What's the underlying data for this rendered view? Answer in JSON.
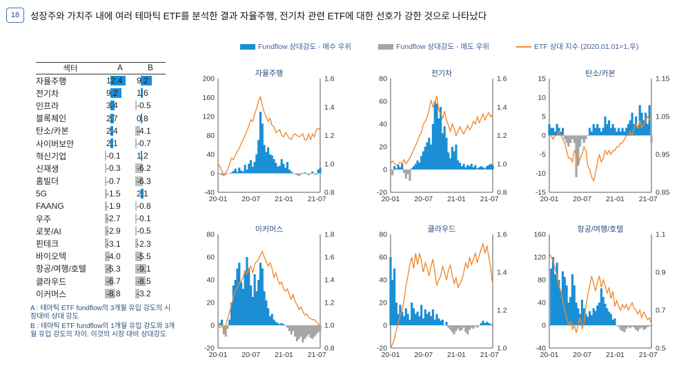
{
  "figure": {
    "number": "18",
    "title": "성장주와 가치주 내에 여러 테마틱 ETF를 분석한 결과 자율주행, 전기차 관련 ETF에 대한 선호가 강한 것으로 나타났다"
  },
  "legend": {
    "buy": "Fundflow 상대강도 - 매수 우위",
    "sell": "Fundflow 상대강도 - 매도 우위",
    "etf": "ETF 상대 지수 (2020.01.01=1,우)"
  },
  "colors": {
    "buy": "#1a8fd6",
    "sell": "#a6a6a6",
    "etf": "#f08a30",
    "text_blue": "#2a4d80"
  },
  "table": {
    "headers": [
      "섹터",
      "A",
      "B"
    ],
    "rows": [
      {
        "name": "자율주행",
        "a": 12.4,
        "b": 9.2
      },
      {
        "name": "전기차",
        "a": 9.2,
        "b": 1.6
      },
      {
        "name": "인프라",
        "a": 3.4,
        "b": -0.5
      },
      {
        "name": "블록체인",
        "a": 2.7,
        "b": 0.8
      },
      {
        "name": "탄소/카본",
        "a": 2.4,
        "b": -4.1
      },
      {
        "name": "사이버보안",
        "a": 2.1,
        "b": -0.7
      },
      {
        "name": "혁신기업",
        "a": -0.1,
        "b": 1.2
      },
      {
        "name": "신재생",
        "a": -0.3,
        "b": -6.2
      },
      {
        "name": "홈빌더",
        "a": -0.7,
        "b": -6.3
      },
      {
        "name": "5G",
        "a": -1.5,
        "b": 2.1
      },
      {
        "name": "FAANG",
        "a": -1.9,
        "b": -0.8
      },
      {
        "name": "우주",
        "a": -2.7,
        "b": -0.1
      },
      {
        "name": "로봇/AI",
        "a": -2.9,
        "b": -0.5
      },
      {
        "name": "핀테크",
        "a": -3.1,
        "b": -2.3
      },
      {
        "name": "바이오텍",
        "a": -4.0,
        "b": -5.5
      },
      {
        "name": "항공/여행/호텔",
        "a": -5.3,
        "b": -9.1
      },
      {
        "name": "클라우드",
        "a": -6.7,
        "b": -8.5
      },
      {
        "name": "이커머스",
        "a": -8.8,
        "b": -3.2
      }
    ]
  },
  "notes": {
    "a": "A : 테마틱 ETF fundflow의 3개월 유입 강도의 시장대비 상대 강도",
    "b": "B : 테마틱 ETF fundflow의 1개월 유입 강도와 3개월 유입 강도의 차이. 이것의 시장 대비 상대강도"
  },
  "chart_data": [
    {
      "type": "area",
      "title": "자율주행",
      "x_ticks": [
        "20-01",
        "20-07",
        "21-01",
        "21-07"
      ],
      "ylim": [
        -40,
        200
      ],
      "y_ticks": [
        -40,
        0,
        40,
        80,
        120,
        160,
        200
      ],
      "y2lim": [
        0.8,
        1.6
      ],
      "y2_ticks": [
        "0.8",
        "1.0",
        "1.2",
        "1.4",
        "1.6"
      ],
      "fund": [
        0,
        -2,
        -4,
        -6,
        -3,
        -1,
        0,
        2,
        5,
        10,
        3,
        12,
        6,
        4,
        18,
        8,
        20,
        28,
        14,
        24,
        40,
        70,
        130,
        105,
        60,
        45,
        55,
        40,
        38,
        30,
        22,
        14,
        16,
        30,
        20,
        12,
        24,
        8,
        4,
        0,
        -2,
        -4,
        -6,
        -3,
        1,
        2,
        -2,
        -4,
        -2,
        4,
        -2,
        -3,
        8,
        12
      ],
      "etf": [
        1.0,
        0.98,
        0.95,
        0.92,
        0.94,
        0.96,
        1.0,
        1.04,
        1.03,
        1.06,
        1.09,
        1.11,
        1.14,
        1.17,
        1.2,
        1.23,
        1.27,
        1.31,
        1.3,
        1.35,
        1.39,
        1.44,
        1.47,
        1.41,
        1.36,
        1.33,
        1.3,
        1.32,
        1.27,
        1.26,
        1.22,
        1.23,
        1.24,
        1.2,
        1.19,
        1.22,
        1.2,
        1.18,
        1.17,
        1.2,
        1.21,
        1.2,
        1.19,
        1.2,
        1.21,
        1.17,
        1.17,
        1.21,
        1.17,
        1.21,
        1.19,
        1.24,
        1.25,
        1.24
      ]
    },
    {
      "type": "area",
      "title": "전기차",
      "x_ticks": [
        "20-01",
        "20-07",
        "21-01",
        "21-07"
      ],
      "ylim": [
        -20,
        80
      ],
      "y_ticks": [
        -20,
        0,
        20,
        40,
        60,
        80
      ],
      "y2lim": [
        0.8,
        1.6
      ],
      "y2_ticks": [
        "0.8",
        "1.0",
        "1.2",
        "1.4",
        "1.6"
      ],
      "fund": [
        0,
        -5,
        3,
        1,
        4,
        2,
        5,
        -3,
        -8,
        -4,
        -10,
        1,
        3,
        5,
        8,
        6,
        12,
        16,
        20,
        24,
        28,
        22,
        40,
        60,
        58,
        45,
        55,
        32,
        38,
        28,
        15,
        10,
        20,
        16,
        22,
        8,
        6,
        3,
        5,
        2,
        4,
        3,
        5,
        2,
        4,
        1,
        2,
        3,
        2,
        1,
        3,
        4,
        5,
        4
      ],
      "etf": [
        1.0,
        1.02,
        1.0,
        0.99,
        1.0,
        1.01,
        1.0,
        1.03,
        1.0,
        1.02,
        1.04,
        1.07,
        1.1,
        1.13,
        1.16,
        1.2,
        1.22,
        1.28,
        1.3,
        1.33,
        1.38,
        1.45,
        1.4,
        1.43,
        1.48,
        1.38,
        1.35,
        1.32,
        1.37,
        1.31,
        1.27,
        1.23,
        1.28,
        1.25,
        1.2,
        1.23,
        1.26,
        1.23,
        1.21,
        1.24,
        1.27,
        1.24,
        1.26,
        1.3,
        1.28,
        1.33,
        1.29,
        1.32,
        1.35,
        1.31,
        1.34,
        1.36,
        1.33,
        1.35
      ]
    },
    {
      "type": "area",
      "title": "탄소/카본",
      "x_ticks": [
        "20-01",
        "20-07",
        "21-01",
        "21-07"
      ],
      "ylim": [
        -15,
        15
      ],
      "y_ticks": [
        -15,
        -10,
        -5,
        0,
        5,
        10,
        15
      ],
      "y2lim": [
        0.85,
        1.15
      ],
      "y2_ticks": [
        "0.85",
        "0.95",
        "1.05",
        "1.15"
      ],
      "fund": [
        3,
        2,
        2,
        1,
        3,
        2,
        1,
        2,
        -1,
        -2,
        -3,
        -2,
        -1,
        -2,
        -11,
        -8,
        -3,
        -1,
        -2,
        -1,
        0,
        2,
        1,
        3,
        2,
        3,
        2,
        1,
        2,
        5,
        3,
        4,
        2,
        3,
        2,
        1,
        2,
        1,
        2,
        1,
        2,
        3,
        4,
        6,
        3,
        5,
        2,
        8,
        6,
        4,
        6,
        3,
        8,
        -2
      ],
      "etf": [
        1.0,
        1.0,
        0.99,
        1.0,
        1.0,
        1.01,
        1.0,
        0.99,
        0.98,
        0.96,
        0.94,
        0.94,
        0.93,
        0.96,
        0.95,
        0.92,
        0.94,
        0.95,
        0.97,
        0.96,
        0.92,
        0.91,
        0.89,
        0.88,
        0.9,
        0.93,
        0.95,
        0.93,
        0.94,
        0.96,
        0.95,
        0.96,
        0.95,
        0.96,
        0.96,
        0.97,
        0.97,
        0.98,
        0.98,
        0.99,
        1.0,
        1.0,
        1.01,
        1.0,
        1.02,
        1.03,
        1.02,
        1.04,
        1.02,
        1.03,
        1.04,
        1.05,
        1.04,
        1.05
      ]
    },
    {
      "type": "area",
      "title": "이커머스",
      "x_ticks": [
        "20-01",
        "20-07",
        "21-01",
        "21-07"
      ],
      "ylim": [
        -20,
        80
      ],
      "y_ticks": [
        -20,
        0,
        20,
        40,
        60,
        80
      ],
      "y2lim": [
        0.8,
        1.8
      ],
      "y2_ticks": [
        "0.8",
        "1.0",
        "1.2",
        "1.4",
        "1.6",
        "1.8"
      ],
      "fund": [
        0,
        2,
        5,
        -8,
        -10,
        -3,
        5,
        20,
        35,
        40,
        50,
        55,
        38,
        32,
        48,
        60,
        50,
        35,
        25,
        45,
        30,
        40,
        55,
        50,
        30,
        22,
        15,
        8,
        10,
        5,
        3,
        2,
        1,
        2,
        1,
        0,
        -2,
        -5,
        -8,
        -5,
        -10,
        -14,
        -12,
        -10,
        -15,
        -12,
        -10,
        -8,
        -11,
        -12,
        -10,
        -8,
        -6,
        -5
      ],
      "etf": [
        1.0,
        0.98,
        1.0,
        0.95,
        1.0,
        1.06,
        1.12,
        1.18,
        1.25,
        1.3,
        1.33,
        1.37,
        1.39,
        1.42,
        1.48,
        1.45,
        1.5,
        1.52,
        1.46,
        1.54,
        1.56,
        1.58,
        1.62,
        1.65,
        1.6,
        1.56,
        1.52,
        1.55,
        1.5,
        1.42,
        1.46,
        1.4,
        1.36,
        1.38,
        1.32,
        1.3,
        1.32,
        1.27,
        1.23,
        1.27,
        1.21,
        1.18,
        1.14,
        1.16,
        1.12,
        1.09,
        1.1,
        1.07,
        1.06,
        1.05,
        1.05,
        1.03,
        1.01,
        0.99
      ]
    },
    {
      "type": "area",
      "title": "클라우드",
      "x_ticks": [
        "20-01",
        "20-07",
        "21-01",
        "21-07"
      ],
      "ylim": [
        -20,
        80
      ],
      "y_ticks": [
        -20,
        0,
        20,
        40,
        60,
        80
      ],
      "y2lim": [
        1.0,
        1.6
      ],
      "y2_ticks": [
        "1.0",
        "1.2",
        "1.4",
        "1.6"
      ],
      "fund": [
        60,
        40,
        50,
        20,
        10,
        18,
        12,
        8,
        15,
        10,
        5,
        20,
        15,
        10,
        12,
        8,
        18,
        6,
        14,
        10,
        12,
        8,
        14,
        5,
        10,
        6,
        4,
        5,
        0,
        3,
        -2,
        -4,
        -6,
        -8,
        -5,
        -3,
        -5,
        -4,
        -2,
        -6,
        -8,
        -4,
        -2,
        -3,
        -1,
        -2,
        0,
        2,
        4,
        2,
        3,
        2,
        1,
        0
      ],
      "etf": [
        1.0,
        1.02,
        1.05,
        1.1,
        1.13,
        1.18,
        1.2,
        1.25,
        1.33,
        1.38,
        1.44,
        1.48,
        1.42,
        1.5,
        1.44,
        1.5,
        1.46,
        1.4,
        1.45,
        1.42,
        1.38,
        1.43,
        1.47,
        1.4,
        1.33,
        1.36,
        1.38,
        1.43,
        1.4,
        1.36,
        1.41,
        1.44,
        1.38,
        1.34,
        1.37,
        1.32,
        1.34,
        1.36,
        1.4,
        1.45,
        1.42,
        1.48,
        1.44,
        1.47,
        1.5,
        1.45,
        1.49,
        1.52,
        1.55,
        1.5,
        1.54,
        1.48,
        1.42,
        1.33
      ]
    },
    {
      "type": "area",
      "title": "항공/여행/호텔",
      "x_ticks": [
        "20-01",
        "20-07",
        "21-01",
        "21-07"
      ],
      "ylim": [
        -40,
        160
      ],
      "y_ticks": [
        -40,
        0,
        40,
        80,
        120,
        160
      ],
      "y2lim": [
        0.5,
        1.1
      ],
      "y2_ticks": [
        "0.5",
        "0.7",
        "0.9",
        "1.1"
      ],
      "fund": [
        0,
        100,
        120,
        90,
        110,
        80,
        60,
        95,
        85,
        70,
        40,
        50,
        90,
        70,
        40,
        30,
        20,
        45,
        30,
        20,
        15,
        25,
        18,
        30,
        25,
        35,
        40,
        65,
        50,
        38,
        30,
        24,
        20,
        10,
        12,
        0,
        -3,
        -8,
        -10,
        -12,
        -6,
        -3,
        -5,
        -2,
        -4,
        -8,
        -10,
        -6,
        -4,
        -8,
        -6,
        -3,
        -2,
        0
      ],
      "etf": [
        1.0,
        0.98,
        0.96,
        0.92,
        0.88,
        0.83,
        0.8,
        0.75,
        0.7,
        0.66,
        0.62,
        0.64,
        0.6,
        0.62,
        0.58,
        0.63,
        0.66,
        0.6,
        0.63,
        0.72,
        0.78,
        0.83,
        0.88,
        0.84,
        0.8,
        0.85,
        0.88,
        0.82,
        0.86,
        0.83,
        0.79,
        0.82,
        0.76,
        0.8,
        0.72,
        0.75,
        0.72,
        0.7,
        0.73,
        0.71,
        0.73,
        0.7,
        0.72,
        0.74,
        0.71,
        0.7,
        0.68,
        0.7,
        0.66,
        0.69,
        0.67,
        0.65,
        0.66,
        0.63
      ]
    }
  ]
}
